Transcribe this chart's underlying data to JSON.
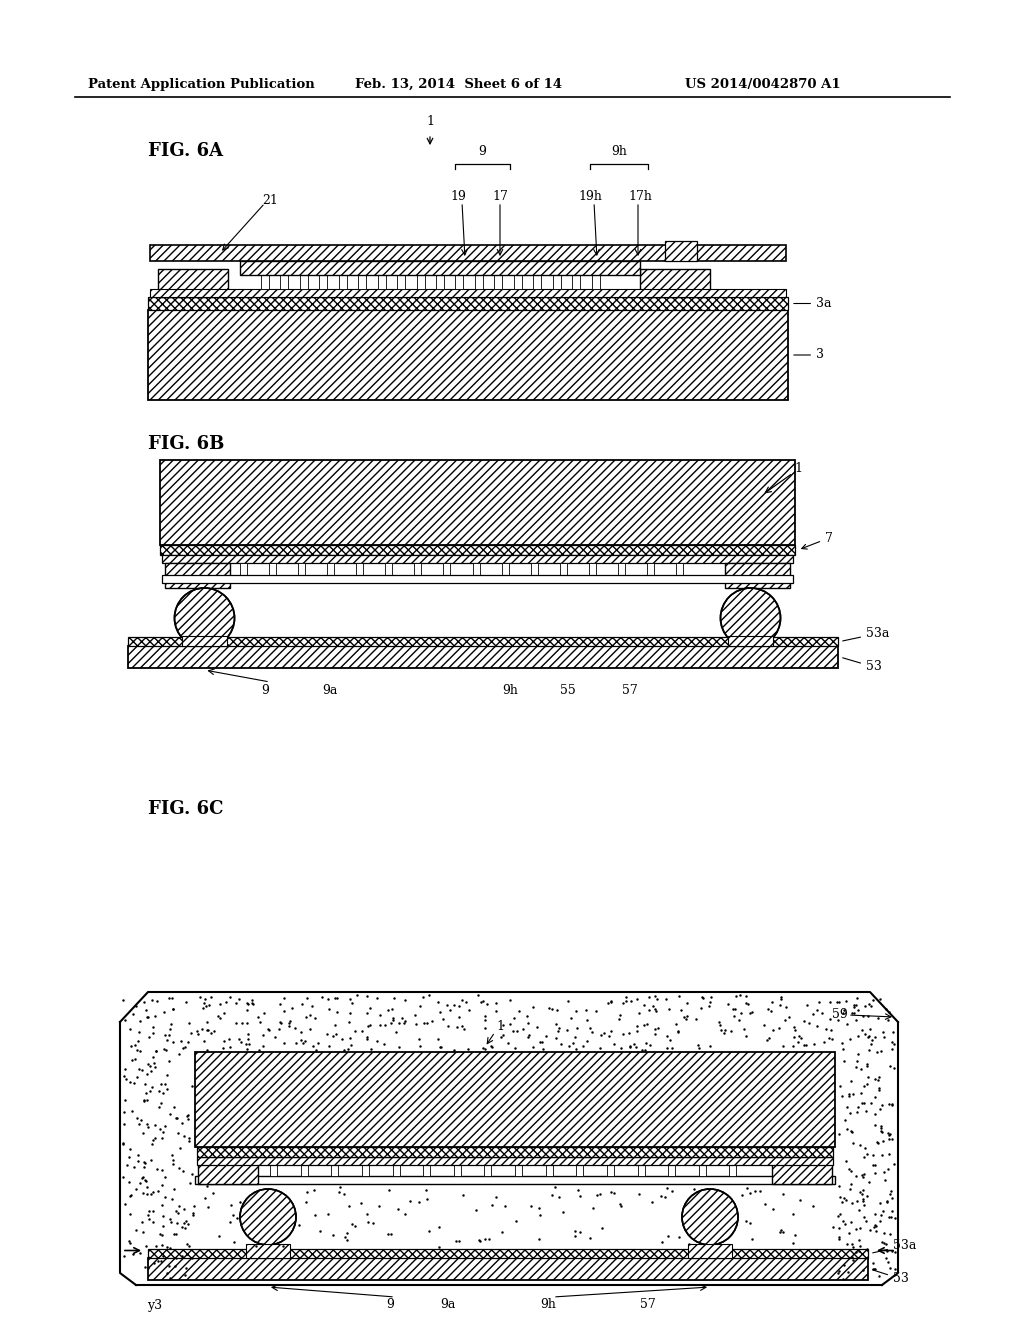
{
  "title_left": "Patent Application Publication",
  "title_mid": "Feb. 13, 2014  Sheet 6 of 14",
  "title_right": "US 2014/0042870 A1",
  "fig6a_label": "FIG. 6A",
  "fig6b_label": "FIG. 6B",
  "fig6c_label": "FIG. 6C",
  "bg_color": "#ffffff",
  "line_color": "#000000"
}
